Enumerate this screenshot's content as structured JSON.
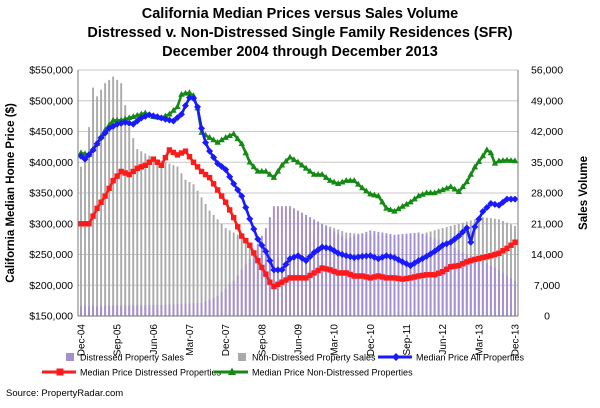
{
  "title": "California Median Prices versus Sales Volume",
  "subtitle1": "Distressed v. Non-Distressed Single Family Residences (SFR)",
  "subtitle2": "December 2004 through December 2013",
  "source": "Source: PropertyRadar.com",
  "colors": {
    "distressed_sales": "#a48fd0",
    "nondistressed_sales": "#aaaaaa",
    "median_all": "#1a1aff",
    "median_distressed": "#ff1a1a",
    "median_nondistressed": "#148a14"
  },
  "chart_data": {
    "type": "bar+line",
    "ylabel": "California Median Home Price ($)",
    "y2label": "Sales Volume",
    "ylim": [
      150000,
      550000
    ],
    "y2lim": [
      0,
      56000
    ],
    "yticks": [
      "$150,000",
      "$200,000",
      "$250,000",
      "$300,000",
      "$350,000",
      "$400,000",
      "$450,000",
      "$500,000",
      "$550,000"
    ],
    "y2ticks": [
      "0",
      "7,000",
      "14,000",
      "21,000",
      "28,000",
      "35,000",
      "42,000",
      "49,000",
      "56,000"
    ],
    "xticks": [
      "Dec-04",
      "Sep-05",
      "Jun-06",
      "Mar-07",
      "Dec-07",
      "Sep-08",
      "Jun-09",
      "Mar-10",
      "Dec-10",
      "Sep-11",
      "Jun-12",
      "Mar-13",
      "Dec-13"
    ],
    "grid": "horizontal",
    "legend_position": "bottom",
    "series": [
      {
        "name": "Distressed Property Sales",
        "kind": "bar",
        "axis": "right",
        "knots": [
          [
            0,
            2200
          ],
          [
            10,
            2400
          ],
          [
            20,
            2500
          ],
          [
            30,
            3000
          ],
          [
            34,
            4500
          ],
          [
            38,
            8000
          ],
          [
            42,
            13000
          ],
          [
            46,
            20000
          ],
          [
            48,
            25000
          ],
          [
            52,
            25000
          ],
          [
            55,
            23500
          ],
          [
            60,
            21000
          ],
          [
            66,
            17500
          ],
          [
            72,
            19500
          ],
          [
            78,
            18500
          ],
          [
            84,
            19000
          ],
          [
            90,
            17000
          ],
          [
            96,
            14000
          ],
          [
            100,
            12500
          ],
          [
            104,
            10500
          ],
          [
            108,
            8000
          ]
        ]
      },
      {
        "name": "Non-Distressed Property Sales",
        "kind": "bar",
        "axis": "right",
        "knots": [
          [
            0,
            34000
          ],
          [
            1,
            36000
          ],
          [
            2,
            43000
          ],
          [
            3,
            52000
          ],
          [
            4,
            50000
          ],
          [
            6,
            53000
          ],
          [
            8,
            54500
          ],
          [
            10,
            53000
          ],
          [
            12,
            43000
          ],
          [
            14,
            38000
          ],
          [
            18,
            36000
          ],
          [
            24,
            34000
          ],
          [
            26,
            31000
          ],
          [
            28,
            30000
          ],
          [
            30,
            27000
          ],
          [
            32,
            24000
          ],
          [
            34,
            22000
          ],
          [
            36,
            20000
          ],
          [
            40,
            18000
          ],
          [
            44,
            14000
          ],
          [
            48,
            13000
          ],
          [
            52,
            14000
          ],
          [
            55,
            15500
          ],
          [
            60,
            21000
          ],
          [
            66,
            19000
          ],
          [
            72,
            18500
          ],
          [
            78,
            18000
          ],
          [
            84,
            18500
          ],
          [
            90,
            20000
          ],
          [
            96,
            21500
          ],
          [
            100,
            22500
          ],
          [
            104,
            22000
          ],
          [
            108,
            20500
          ]
        ]
      },
      {
        "name": "Median Price All Properties",
        "kind": "line",
        "axis": "left",
        "knots": [
          [
            0,
            410000
          ],
          [
            1,
            405000
          ],
          [
            3,
            420000
          ],
          [
            5,
            440000
          ],
          [
            7,
            455000
          ],
          [
            9,
            462000
          ],
          [
            11,
            465000
          ],
          [
            13,
            462000
          ],
          [
            15,
            472000
          ],
          [
            17,
            477000
          ],
          [
            19,
            474000
          ],
          [
            21,
            470000
          ],
          [
            23,
            467000
          ],
          [
            25,
            478000
          ],
          [
            26,
            492000
          ],
          [
            27,
            505000
          ],
          [
            28,
            504000
          ],
          [
            29,
            490000
          ],
          [
            30,
            455000
          ],
          [
            31,
            432000
          ],
          [
            32,
            418000
          ],
          [
            34,
            398000
          ],
          [
            36,
            388000
          ],
          [
            38,
            365000
          ],
          [
            40,
            345000
          ],
          [
            42,
            308000
          ],
          [
            44,
            275000
          ],
          [
            46,
            255000
          ],
          [
            48,
            225000
          ],
          [
            50,
            225000
          ],
          [
            52,
            243000
          ],
          [
            54,
            248000
          ],
          [
            56,
            240000
          ],
          [
            58,
            253000
          ],
          [
            60,
            262000
          ],
          [
            62,
            260000
          ],
          [
            64,
            252000
          ],
          [
            66,
            248000
          ],
          [
            68,
            245000
          ],
          [
            70,
            247000
          ],
          [
            72,
            248000
          ],
          [
            74,
            243000
          ],
          [
            76,
            248000
          ],
          [
            78,
            245000
          ],
          [
            80,
            238000
          ],
          [
            82,
            232000
          ],
          [
            84,
            240000
          ],
          [
            86,
            247000
          ],
          [
            88,
            255000
          ],
          [
            90,
            265000
          ],
          [
            92,
            270000
          ],
          [
            94,
            280000
          ],
          [
            96,
            293000
          ],
          [
            97,
            270000
          ],
          [
            98,
            295000
          ],
          [
            100,
            320000
          ],
          [
            102,
            333000
          ],
          [
            104,
            330000
          ],
          [
            106,
            340000
          ],
          [
            108,
            340000
          ]
        ]
      },
      {
        "name": "Median Price Distressed Properties",
        "kind": "line",
        "axis": "left",
        "knots": [
          [
            0,
            300000
          ],
          [
            2,
            300000
          ],
          [
            4,
            325000
          ],
          [
            6,
            345000
          ],
          [
            8,
            370000
          ],
          [
            10,
            385000
          ],
          [
            12,
            380000
          ],
          [
            14,
            390000
          ],
          [
            16,
            395000
          ],
          [
            18,
            405000
          ],
          [
            20,
            395000
          ],
          [
            22,
            420000
          ],
          [
            24,
            412000
          ],
          [
            26,
            418000
          ],
          [
            28,
            400000
          ],
          [
            30,
            385000
          ],
          [
            32,
            375000
          ],
          [
            34,
            355000
          ],
          [
            36,
            335000
          ],
          [
            38,
            310000
          ],
          [
            40,
            280000
          ],
          [
            42,
            265000
          ],
          [
            44,
            240000
          ],
          [
            46,
            218000
          ],
          [
            47,
            205000
          ],
          [
            48,
            198000
          ],
          [
            50,
            205000
          ],
          [
            52,
            212000
          ],
          [
            54,
            212000
          ],
          [
            56,
            212000
          ],
          [
            58,
            220000
          ],
          [
            60,
            228000
          ],
          [
            62,
            225000
          ],
          [
            64,
            220000
          ],
          [
            66,
            220000
          ],
          [
            68,
            215000
          ],
          [
            70,
            215000
          ],
          [
            72,
            212000
          ],
          [
            74,
            215000
          ],
          [
            76,
            212000
          ],
          [
            78,
            212000
          ],
          [
            80,
            210000
          ],
          [
            82,
            212000
          ],
          [
            84,
            215000
          ],
          [
            86,
            217000
          ],
          [
            88,
            217000
          ],
          [
            90,
            222000
          ],
          [
            92,
            230000
          ],
          [
            94,
            232000
          ],
          [
            96,
            238000
          ],
          [
            98,
            242000
          ],
          [
            100,
            245000
          ],
          [
            102,
            248000
          ],
          [
            104,
            252000
          ],
          [
            106,
            260000
          ],
          [
            108,
            270000
          ]
        ]
      },
      {
        "name": "Median Price Non-Distressed Properties",
        "kind": "line",
        "axis": "left",
        "knots": [
          [
            0,
            415000
          ],
          [
            2,
            412000
          ],
          [
            4,
            430000
          ],
          [
            6,
            452000
          ],
          [
            8,
            468000
          ],
          [
            10,
            468000
          ],
          [
            12,
            472000
          ],
          [
            14,
            476000
          ],
          [
            16,
            480000
          ],
          [
            18,
            474000
          ],
          [
            20,
            472000
          ],
          [
            22,
            478000
          ],
          [
            24,
            490000
          ],
          [
            25,
            510000
          ],
          [
            26,
            512000
          ],
          [
            27,
            513000
          ],
          [
            28,
            508000
          ],
          [
            29,
            488000
          ],
          [
            30,
            448000
          ],
          [
            32,
            440000
          ],
          [
            34,
            432000
          ],
          [
            36,
            440000
          ],
          [
            38,
            446000
          ],
          [
            40,
            430000
          ],
          [
            42,
            400000
          ],
          [
            44,
            385000
          ],
          [
            46,
            385000
          ],
          [
            48,
            375000
          ],
          [
            50,
            395000
          ],
          [
            52,
            408000
          ],
          [
            54,
            400000
          ],
          [
            56,
            390000
          ],
          [
            58,
            380000
          ],
          [
            60,
            380000
          ],
          [
            62,
            370000
          ],
          [
            64,
            365000
          ],
          [
            66,
            370000
          ],
          [
            68,
            370000
          ],
          [
            70,
            358000
          ],
          [
            72,
            348000
          ],
          [
            74,
            345000
          ],
          [
            76,
            325000
          ],
          [
            78,
            320000
          ],
          [
            80,
            328000
          ],
          [
            82,
            335000
          ],
          [
            84,
            345000
          ],
          [
            86,
            350000
          ],
          [
            88,
            350000
          ],
          [
            90,
            355000
          ],
          [
            92,
            360000
          ],
          [
            94,
            352000
          ],
          [
            96,
            368000
          ],
          [
            98,
            392000
          ],
          [
            100,
            410000
          ],
          [
            101,
            420000
          ],
          [
            102,
            415000
          ],
          [
            103,
            398000
          ],
          [
            104,
            402000
          ],
          [
            106,
            403000
          ],
          [
            108,
            402000
          ]
        ]
      }
    ]
  }
}
